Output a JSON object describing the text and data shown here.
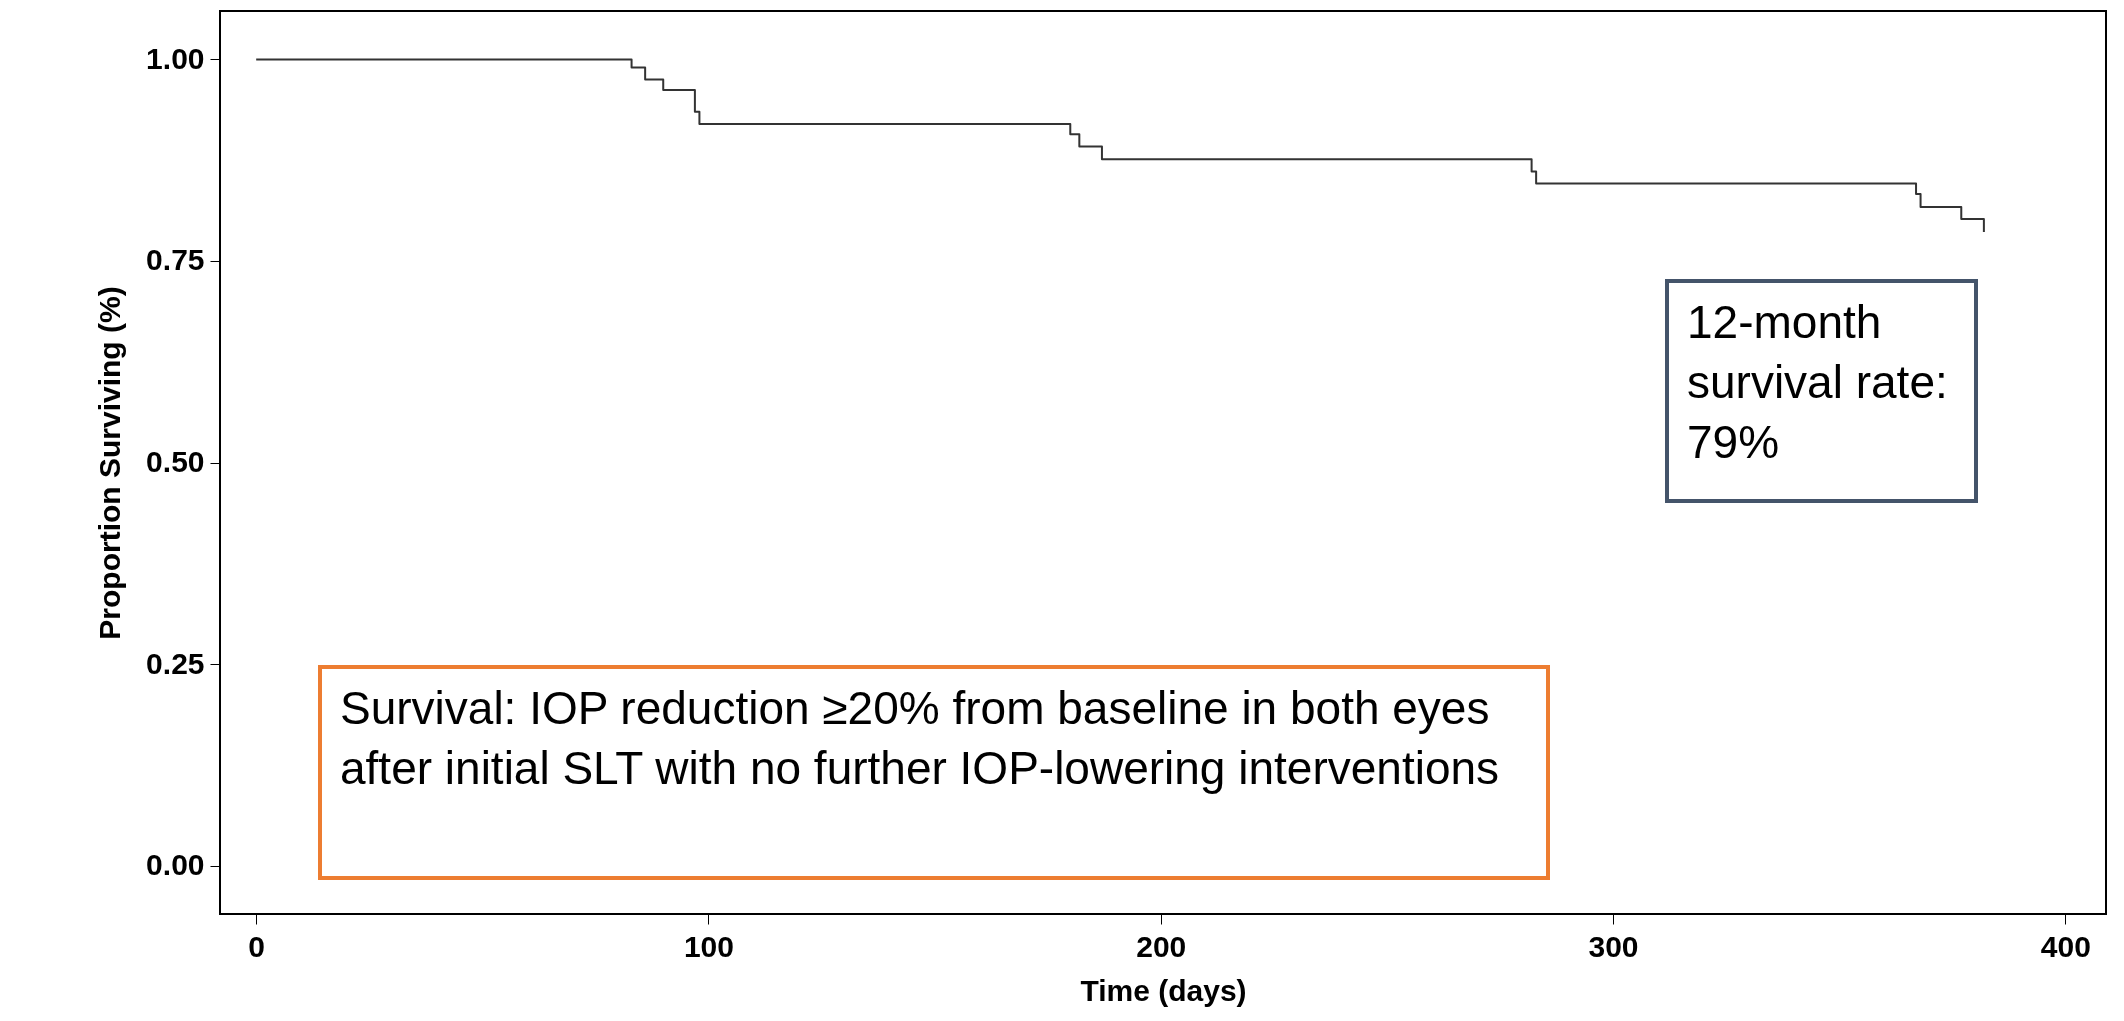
{
  "chart_data": {
    "type": "step",
    "xlabel": "Time  (days)",
    "ylabel": "Proportion Surviving (%)",
    "x": [
      0,
      83,
      86,
      90,
      97,
      98,
      180,
      182,
      187,
      282,
      283,
      367,
      368,
      377,
      382
    ],
    "series": [
      {
        "color": "#333333",
        "values": [
          1,
          0.99,
          0.975,
          0.962,
          0.935,
          0.92,
          0.907,
          0.892,
          0.876,
          0.861,
          0.846,
          0.833,
          0.817,
          0.802,
          0.786
        ]
      }
    ],
    "xlim": [
      -8,
      409
    ],
    "xticks": [
      0,
      100,
      200,
      300,
      400
    ],
    "ylim": [
      -0.06,
      1.06
    ],
    "yticks": [
      {
        "value": 0,
        "label": "0.00"
      },
      {
        "value": 0.25,
        "label": "0.25"
      },
      {
        "value": 0.5,
        "label": "0.50"
      },
      {
        "value": 0.75,
        "label": "0.75"
      },
      {
        "value": 1,
        "label": "1.00"
      }
    ],
    "grid": false,
    "annotations": [
      "12-month survival rate:   79%",
      "Survival: IOP reduction ≥20% from baseline in both eyes after initial SLT with no further IOP-lowering interventions"
    ]
  }
}
